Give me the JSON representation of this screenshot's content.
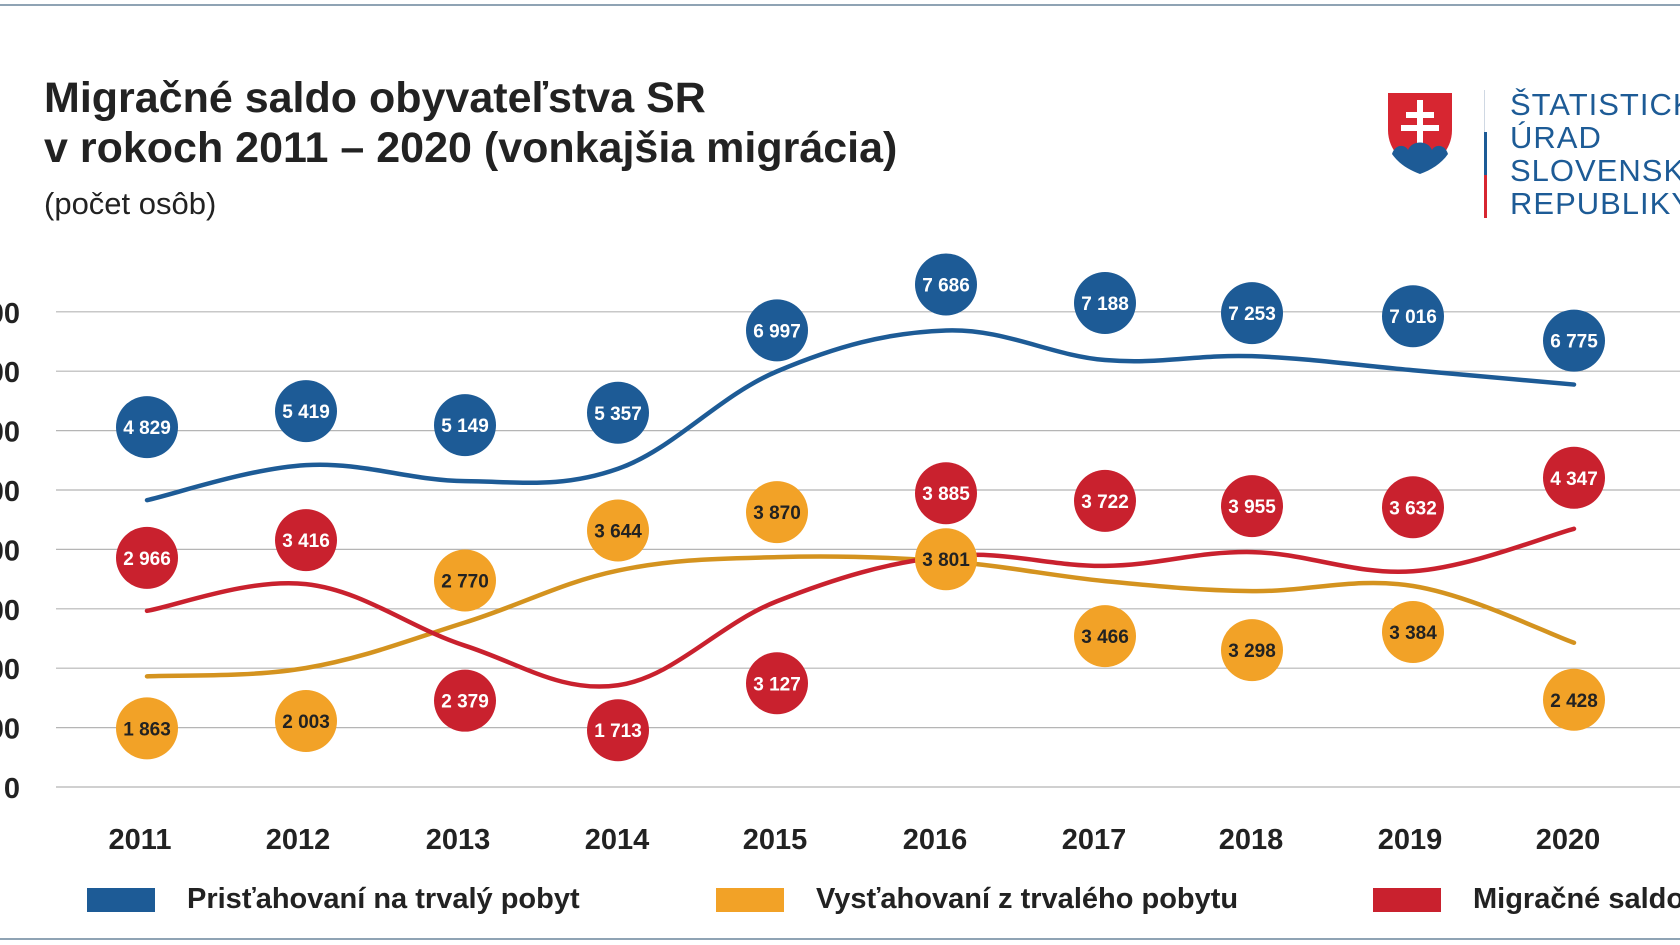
{
  "header": {
    "title_line1": "Migračné saldo obyvateľstva SR",
    "title_line2": "v rokoch 2011 – 2020 (vonkajšia migrácia)",
    "subtitle": "(počet osôb)"
  },
  "logo": {
    "line1": "ŠTATISTICK",
    "line2": "ÚRAD",
    "line3": "SLOVENSKE",
    "line4": "REPUBLIKY",
    "emblem": "slovak-coat-of-arms-icon"
  },
  "colors": {
    "immigrants": "#1d5b96",
    "emigrants": "#f2a227",
    "emigrants_line": "#d4931f",
    "saldo": "#c9212e",
    "grid": "#b5b5b5",
    "frame": "#8fa3b4"
  },
  "chart_data": {
    "type": "line",
    "title": "Migračné saldo obyvateľstva SR v rokoch 2011 – 2020 (vonkajšia migrácia)",
    "ylabel": "počet osôb",
    "categories": [
      "2011",
      "2012",
      "2013",
      "2014",
      "2015",
      "2016",
      "2017",
      "2018",
      "2019",
      "2020"
    ],
    "y_ticks": [
      "0",
      "00",
      "00",
      "00",
      "00",
      "00",
      "00",
      "00",
      "00"
    ],
    "ylim": [
      0,
      8000
    ],
    "grid": true,
    "legend_position": "bottom",
    "series": [
      {
        "key": "immigrants",
        "name": "Prisťahovaní na trvalý pobyt",
        "values": [
          4829,
          5419,
          5149,
          5357,
          6997,
          7686,
          7188,
          7253,
          7016,
          6775
        ],
        "labels": [
          "4 829",
          "5 419",
          "5 149",
          "5 357",
          "6 997",
          "7 686",
          "7 188",
          "7 253",
          "7 016",
          "6 775"
        ]
      },
      {
        "key": "emigrants",
        "name": "Vysťahovaní z trvalého pobytu",
        "values": [
          1863,
          2003,
          2770,
          3644,
          3870,
          3801,
          3466,
          3298,
          3384,
          2428
        ],
        "labels": [
          "1 863",
          "2 003",
          "2 770",
          "3 644",
          "3 870",
          "3 801",
          "3 466",
          "3 298",
          "3 384",
          "2 428"
        ]
      },
      {
        "key": "saldo",
        "name": "Migračné saldo",
        "values": [
          2966,
          3416,
          2379,
          1713,
          3127,
          3885,
          3722,
          3955,
          3632,
          4347
        ],
        "labels": [
          "2 966",
          "3 416",
          "2 379",
          "1 713",
          "3 127",
          "3 885",
          "3 722",
          "3 955",
          "3 632",
          "4 347"
        ]
      }
    ]
  },
  "legend": {
    "items": [
      {
        "key": "immigrants",
        "label": "Prisťahovaní na trvalý pobyt"
      },
      {
        "key": "emigrants",
        "label": "Vysťahovaní z trvalého pobytu"
      },
      {
        "key": "saldo",
        "label": "Migračné saldo"
      }
    ]
  }
}
